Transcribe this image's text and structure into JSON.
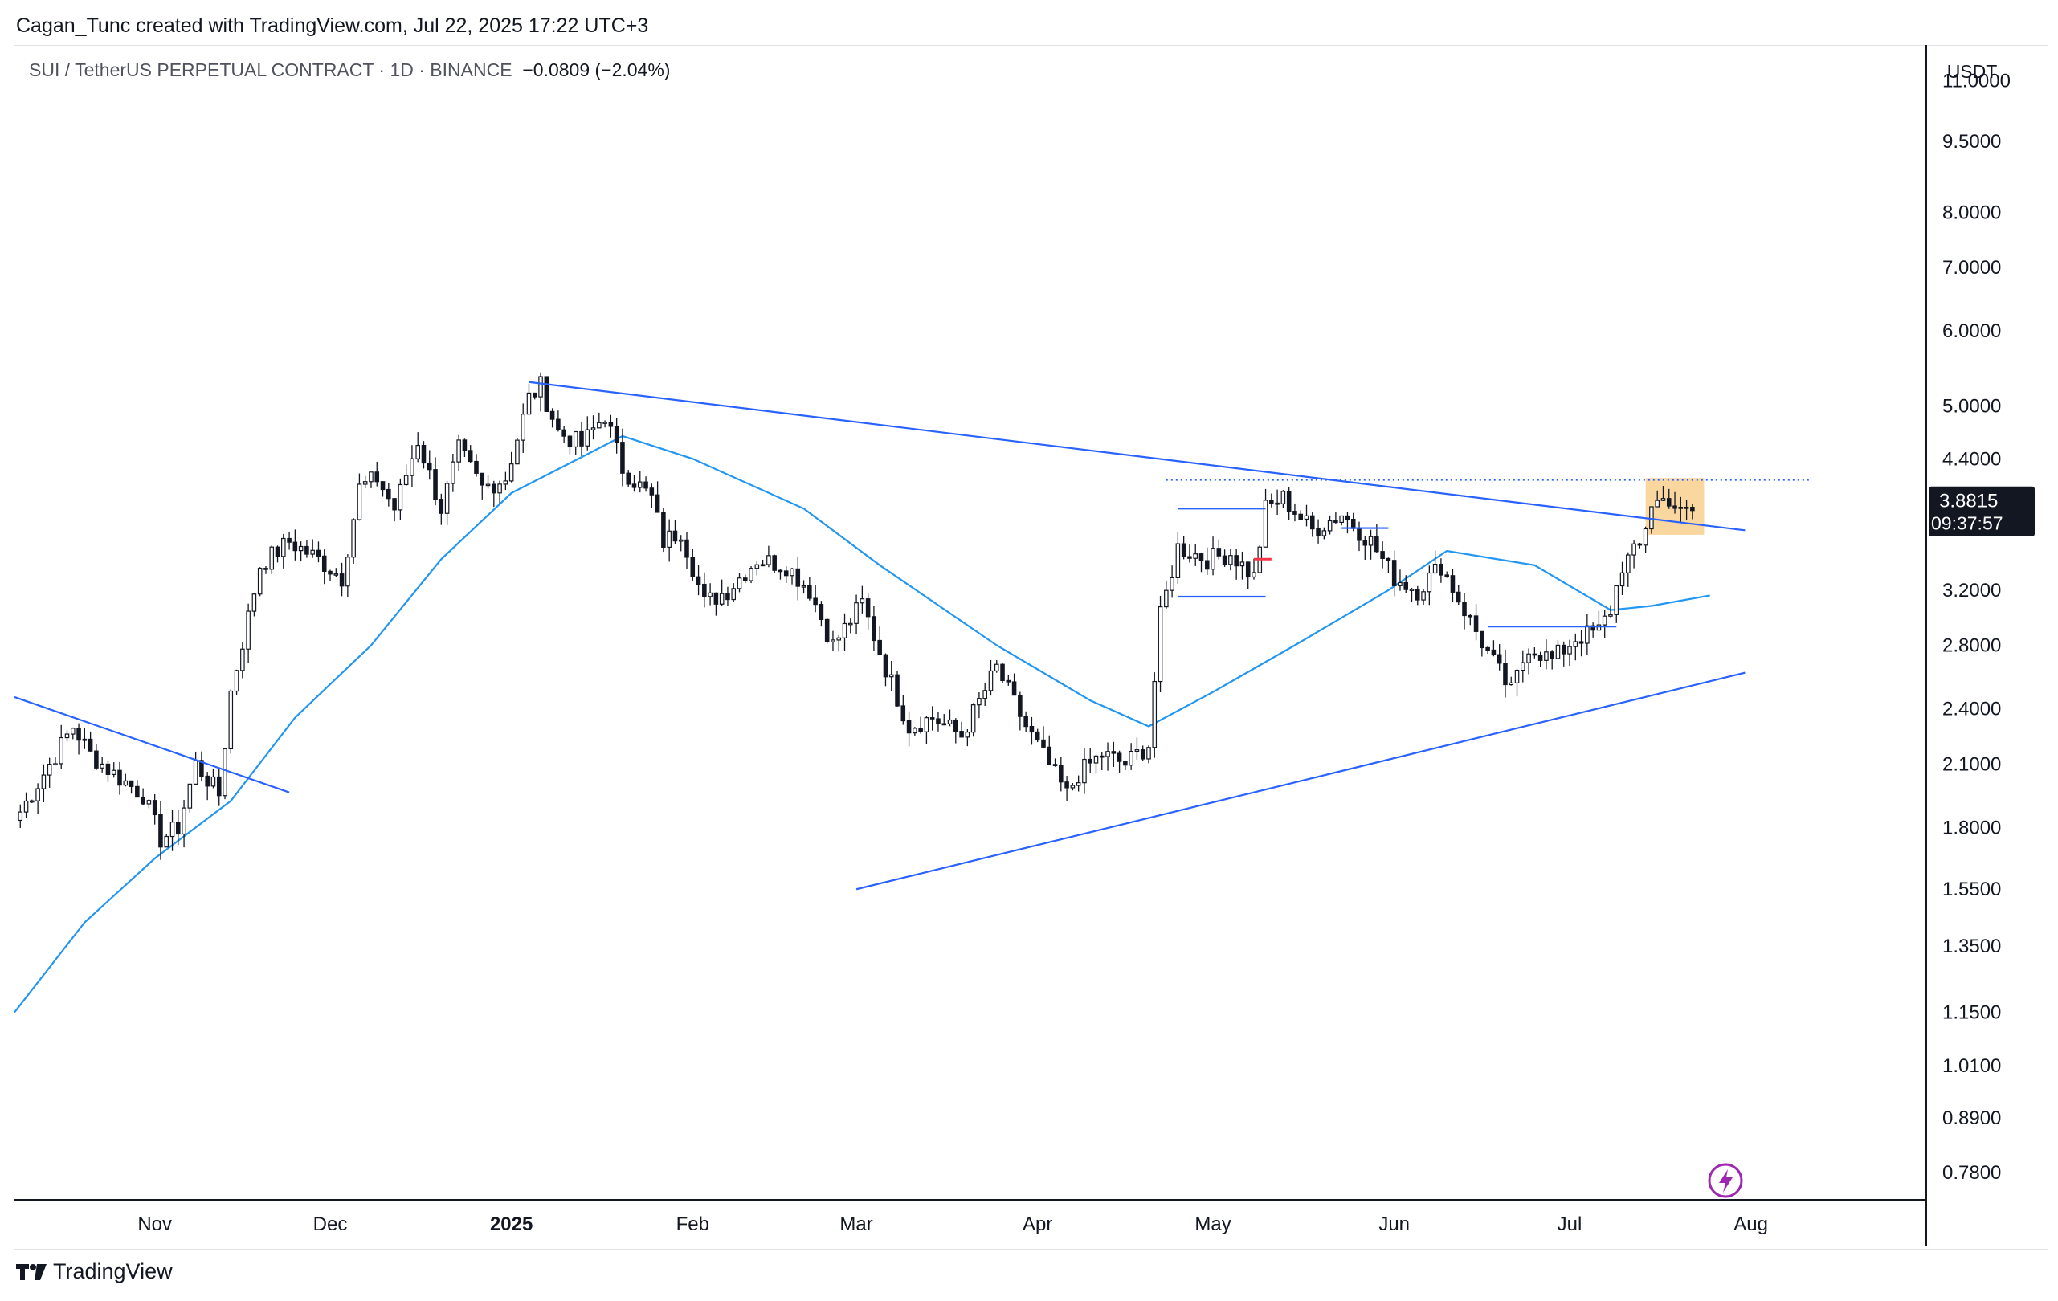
{
  "header": {
    "attribution": "Cagan_Tunc created with TradingView.com, Jul 22, 2025 17:22 UTC+3"
  },
  "legend": {
    "symbol_text": "SUI / TetherUS PERPETUAL CONTRACT · 1D · BINANCE",
    "change_text": "−0.0809 (−2.04%)"
  },
  "footer": {
    "brand": "TradingView"
  },
  "colors": {
    "up": "#131722",
    "down": "#131722",
    "ma": "#2196f3",
    "trendline": "#2962ff",
    "highlight": "#f7c97f",
    "price_tag": "#131722"
  },
  "chart_data": {
    "type": "candlestick",
    "scale": "log",
    "currency": "USDT",
    "xlim": [
      "2024-10-08",
      "2025-08-31"
    ],
    "ylim": [
      0.73,
      12.0
    ],
    "price_ticks": [
      "11.0000",
      "9.5000",
      "8.0000",
      "7.0000",
      "6.0000",
      "5.0000",
      "4.4000",
      "3.2000",
      "2.8000",
      "2.4000",
      "2.1000",
      "1.8000",
      "1.5500",
      "1.3500",
      "1.1500",
      "1.0100",
      "0.8900",
      "0.7800"
    ],
    "month_ticks": [
      {
        "date": "2024-11-01",
        "label": "Nov",
        "bold": false
      },
      {
        "date": "2024-12-01",
        "label": "Dec",
        "bold": false
      },
      {
        "date": "2025-01-01",
        "label": "2025",
        "bold": true
      },
      {
        "date": "2025-02-01",
        "label": "Feb",
        "bold": false
      },
      {
        "date": "2025-03-01",
        "label": "Mar",
        "bold": false
      },
      {
        "date": "2025-04-01",
        "label": "Apr",
        "bold": false
      },
      {
        "date": "2025-05-01",
        "label": "May",
        "bold": false
      },
      {
        "date": "2025-06-01",
        "label": "Jun",
        "bold": false
      },
      {
        "date": "2025-07-01",
        "label": "Jul",
        "bold": false
      },
      {
        "date": "2025-08-01",
        "label": "Aug",
        "bold": false
      }
    ],
    "last_price": {
      "value": 3.8815,
      "label": "3.8815",
      "countdown": "09:37:57"
    },
    "close_anchors": [
      [
        "2024-10-09",
        1.87
      ],
      [
        "2024-10-13",
        2.05
      ],
      [
        "2024-10-18",
        2.3
      ],
      [
        "2024-10-21",
        2.15
      ],
      [
        "2024-10-25",
        2.05
      ],
      [
        "2024-10-30",
        1.95
      ],
      [
        "2024-11-02",
        1.75
      ],
      [
        "2024-11-05",
        1.8
      ],
      [
        "2024-11-08",
        2.1
      ],
      [
        "2024-11-12",
        1.95
      ],
      [
        "2024-11-14",
        2.5
      ],
      [
        "2024-11-17",
        3.0
      ],
      [
        "2024-11-19",
        3.4
      ],
      [
        "2024-11-24",
        3.6
      ],
      [
        "2024-11-29",
        3.45
      ],
      [
        "2024-12-03",
        3.3
      ],
      [
        "2024-12-06",
        4.1
      ],
      [
        "2024-12-09",
        4.2
      ],
      [
        "2024-12-12",
        3.9
      ],
      [
        "2024-12-16",
        4.6
      ],
      [
        "2024-12-20",
        3.9
      ],
      [
        "2024-12-23",
        4.5
      ],
      [
        "2024-12-27",
        4.1
      ],
      [
        "2024-12-31",
        4.2
      ],
      [
        "2025-01-04",
        5.1
      ],
      [
        "2025-01-06",
        5.25
      ],
      [
        "2025-01-09",
        4.7
      ],
      [
        "2025-01-13",
        4.55
      ],
      [
        "2025-01-17",
        4.9
      ],
      [
        "2025-01-20",
        4.3
      ],
      [
        "2025-01-25",
        4.0
      ],
      [
        "2025-01-27",
        3.6
      ],
      [
        "2025-01-30",
        3.7
      ],
      [
        "2025-02-03",
        3.1
      ],
      [
        "2025-02-07",
        3.2
      ],
      [
        "2025-02-12",
        3.45
      ],
      [
        "2025-02-17",
        3.4
      ],
      [
        "2025-02-21",
        3.2
      ],
      [
        "2025-02-25",
        2.8
      ],
      [
        "2025-03-02",
        3.1
      ],
      [
        "2025-03-06",
        2.65
      ],
      [
        "2025-03-10",
        2.3
      ],
      [
        "2025-03-14",
        2.35
      ],
      [
        "2025-03-19",
        2.25
      ],
      [
        "2025-03-25",
        2.65
      ],
      [
        "2025-03-30",
        2.3
      ],
      [
        "2025-04-06",
        1.95
      ],
      [
        "2025-04-08",
        2.05
      ],
      [
        "2025-04-12",
        2.15
      ],
      [
        "2025-04-16",
        2.1
      ],
      [
        "2025-04-20",
        2.2
      ],
      [
        "2025-04-22",
        3.0
      ],
      [
        "2025-04-25",
        3.55
      ],
      [
        "2025-04-30",
        3.45
      ],
      [
        "2025-05-04",
        3.5
      ],
      [
        "2025-05-08",
        3.3
      ],
      [
        "2025-05-10",
        3.9
      ],
      [
        "2025-05-13",
        4.0
      ],
      [
        "2025-05-18",
        3.7
      ],
      [
        "2025-05-23",
        3.85
      ],
      [
        "2025-05-28",
        3.6
      ],
      [
        "2025-06-01",
        3.3
      ],
      [
        "2025-06-05",
        3.2
      ],
      [
        "2025-06-09",
        3.4
      ],
      [
        "2025-06-13",
        3.05
      ],
      [
        "2025-06-17",
        2.75
      ],
      [
        "2025-06-21",
        2.5
      ],
      [
        "2025-06-24",
        2.8
      ],
      [
        "2025-06-28",
        2.7
      ],
      [
        "2025-07-02",
        2.85
      ],
      [
        "2025-07-06",
        2.9
      ],
      [
        "2025-07-08",
        3.05
      ],
      [
        "2025-07-10",
        3.4
      ],
      [
        "2025-07-13",
        3.55
      ],
      [
        "2025-07-15",
        3.95
      ],
      [
        "2025-07-18",
        4.0
      ],
      [
        "2025-07-20",
        3.85
      ],
      [
        "2025-07-22",
        3.8815
      ]
    ],
    "moving_average": [
      [
        "2024-10-08",
        1.15
      ],
      [
        "2024-10-20",
        1.43
      ],
      [
        "2024-11-01",
        1.67
      ],
      [
        "2024-11-14",
        1.92
      ],
      [
        "2024-11-25",
        2.35
      ],
      [
        "2024-12-08",
        2.8
      ],
      [
        "2024-12-20",
        3.45
      ],
      [
        "2025-01-01",
        4.05
      ],
      [
        "2025-01-14",
        4.45
      ],
      [
        "2025-01-20",
        4.65
      ],
      [
        "2025-02-01",
        4.4
      ],
      [
        "2025-02-20",
        3.9
      ],
      [
        "2025-03-05",
        3.4
      ],
      [
        "2025-03-25",
        2.8
      ],
      [
        "2025-04-10",
        2.45
      ],
      [
        "2025-04-20",
        2.3
      ],
      [
        "2025-05-01",
        2.5
      ],
      [
        "2025-05-15",
        2.8
      ],
      [
        "2025-05-31",
        3.2
      ],
      [
        "2025-06-10",
        3.52
      ],
      [
        "2025-06-25",
        3.4
      ],
      [
        "2025-07-08",
        3.05
      ],
      [
        "2025-07-15",
        3.08
      ],
      [
        "2025-07-25",
        3.16
      ]
    ],
    "trendlines": [
      {
        "name": "descending-resistance",
        "from": [
          "2025-01-04",
          5.3
        ],
        "to": [
          "2025-07-31",
          3.7
        ]
      },
      {
        "name": "ascending-support",
        "from": [
          "2025-03-01",
          1.55
        ],
        "to": [
          "2025-07-31",
          2.62
        ]
      },
      {
        "name": "early-downtrend",
        "from": [
          "2024-10-08",
          2.47
        ],
        "to": [
          "2024-11-24",
          1.96
        ]
      }
    ],
    "horizontal_levels": [
      {
        "name": "dotted-resistance",
        "from": "2025-04-23",
        "to": "2025-08-11",
        "price": 4.18,
        "style": "dotted"
      },
      {
        "name": "range-top",
        "from": "2025-04-25",
        "to": "2025-05-10",
        "price": 3.9,
        "style": "solid"
      },
      {
        "name": "range-bottom",
        "from": "2025-04-25",
        "to": "2025-05-10",
        "price": 3.15,
        "style": "solid"
      },
      {
        "name": "mid-level",
        "from": "2025-05-23",
        "to": "2025-05-31",
        "price": 3.72,
        "style": "solid"
      },
      {
        "name": "june-level",
        "from": "2025-06-17",
        "to": "2025-07-09",
        "price": 2.93,
        "style": "solid"
      }
    ],
    "red_marker": {
      "from": "2025-05-08",
      "to": "2025-05-11",
      "price": 3.45
    },
    "highlight_box": {
      "from": "2025-07-14",
      "to": "2025-07-24",
      "top": 4.2,
      "bottom": 3.66
    }
  }
}
